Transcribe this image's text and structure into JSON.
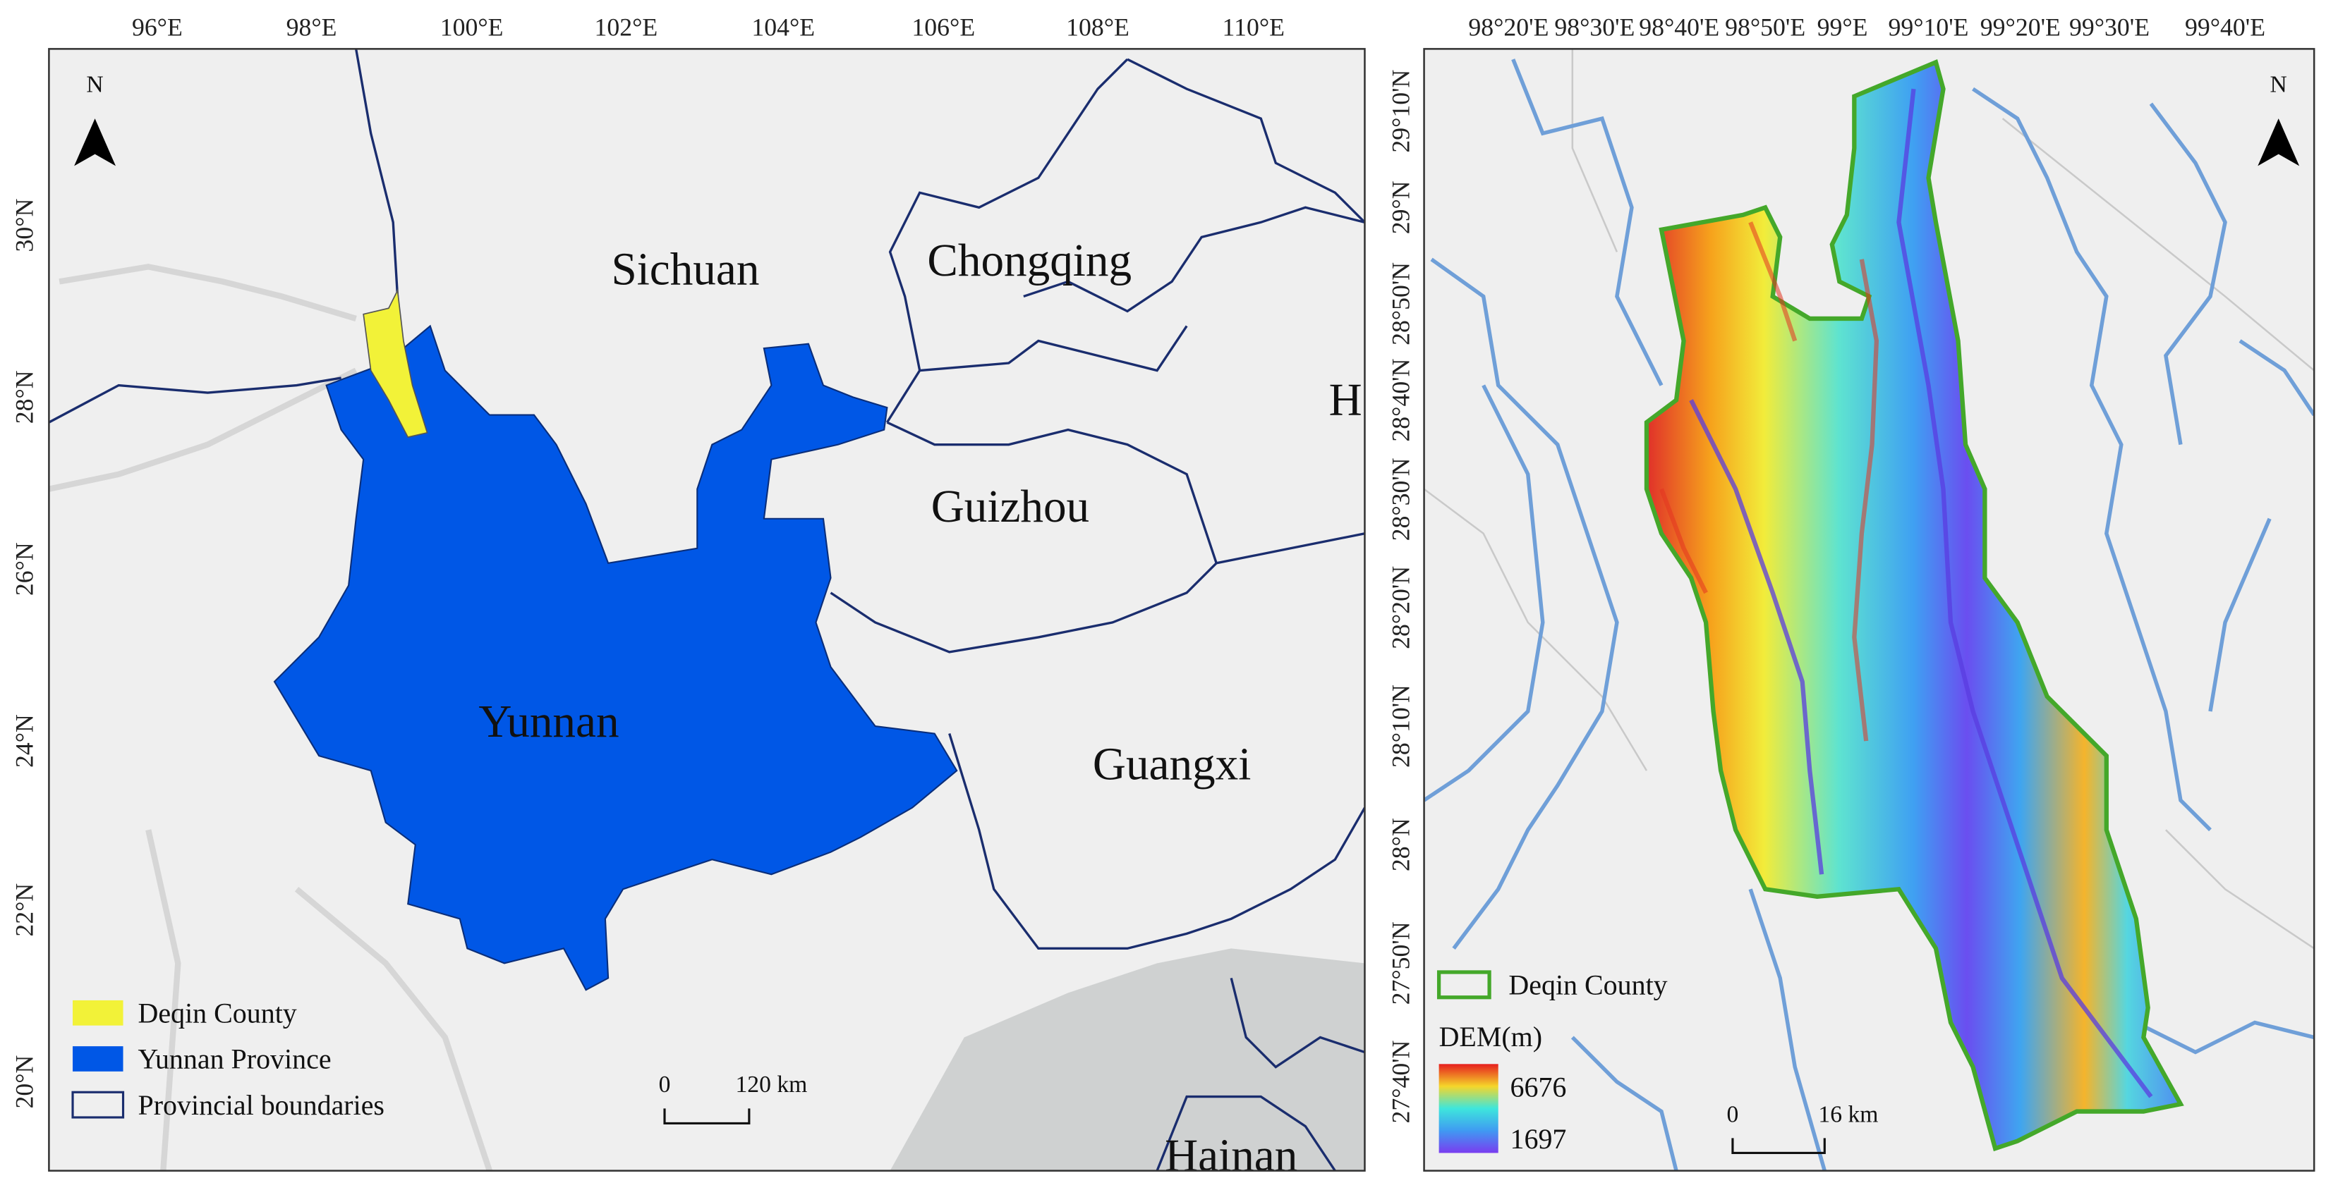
{
  "left_map": {
    "longitude_labels": [
      "96°E",
      "98°E",
      "100°E",
      "102°E",
      "104°E",
      "106°E",
      "108°E",
      "110°E"
    ],
    "latitude_labels": [
      "30°N",
      "28°N",
      "26°N",
      "24°N",
      "22°N",
      "20°N"
    ],
    "region_labels": [
      "Sichuan",
      "Chongqing",
      "Guizhou",
      "Yunnan",
      "Guangxi",
      "Hainan",
      "H"
    ],
    "north_label": "N",
    "legend": {
      "items": [
        "Deqin County",
        "Yunnan Province",
        "Provincial boundaries"
      ]
    },
    "scale_bar": {
      "start": "0",
      "end": "120 km"
    }
  },
  "right_map": {
    "longitude_labels": [
      "98°20'E",
      "98°30'E",
      "98°40'E",
      "98°50'E",
      "99°E",
      "99°10'E",
      "99°20'E",
      "99°30'E",
      "99°40'E"
    ],
    "latitude_labels": [
      "29°10'N",
      "29°N",
      "28°50'N",
      "28°40'N",
      "28°30'N",
      "28°20'N",
      "28°10'N",
      "28°N",
      "27°50'N",
      "27°40'N"
    ],
    "north_label": "N",
    "legend": {
      "boundary": "Deqin County",
      "dem_title": "DEM(m)",
      "dem_max": 6676,
      "dem_min": 1697
    },
    "scale_bar": {
      "start": "0",
      "end": "16 km"
    }
  }
}
